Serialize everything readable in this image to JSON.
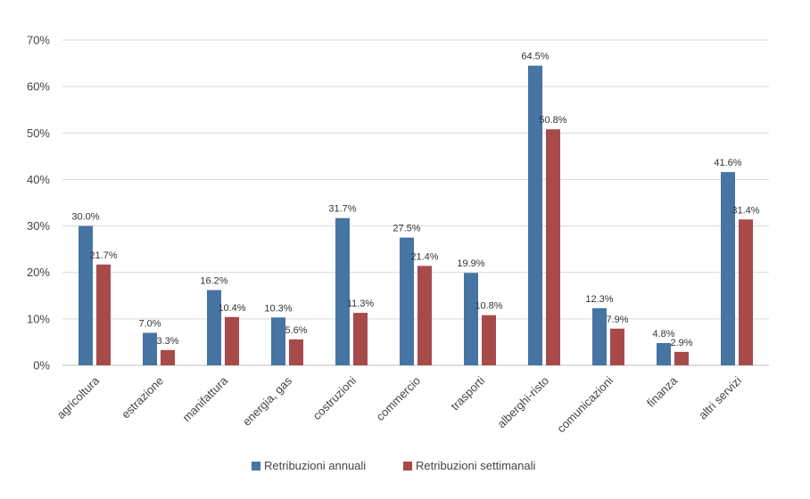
{
  "chart_data": {
    "type": "bar",
    "categories": [
      "agricoltura",
      "estrazione",
      "manifattura",
      "energia, gas",
      "costruzioni",
      "commercio",
      "trasporti",
      "alberghi-risto",
      "comunicazioni",
      "finanza",
      "altri servizi"
    ],
    "series": [
      {
        "name": "Retribuzioni annuali",
        "color": "#4674A3",
        "values": [
          30.0,
          7.0,
          16.2,
          10.3,
          31.7,
          27.5,
          19.9,
          64.5,
          12.3,
          4.8,
          41.6
        ],
        "labels": [
          "30.0%",
          "7.0%",
          "16.2%",
          "10.3%",
          "31.7%",
          "27.5%",
          "19.9%",
          "64.5%",
          "12.3%",
          "4.8%",
          "41.6%"
        ]
      },
      {
        "name": "Retribuzioni settimanali",
        "color": "#A84A4A",
        "values": [
          21.7,
          3.3,
          10.4,
          5.6,
          11.3,
          21.4,
          10.8,
          50.8,
          7.9,
          2.9,
          31.4
        ],
        "labels": [
          "21.7%",
          "3.3%",
          "10.4%",
          "5.6%",
          "11.3%",
          "21.4%",
          "10.8%",
          "50.8%",
          "7.9%",
          "2.9%",
          "31.4%"
        ]
      }
    ],
    "ylim": [
      0,
      70
    ],
    "yticks": [
      0,
      10,
      20,
      30,
      40,
      50,
      60,
      70
    ],
    "ytick_labels": [
      "0%",
      "10%",
      "20%",
      "30%",
      "40%",
      "50%",
      "60%",
      "70%"
    ],
    "grid": true,
    "legend_position": "bottom-center",
    "title": "",
    "xlabel": "",
    "ylabel": ""
  }
}
